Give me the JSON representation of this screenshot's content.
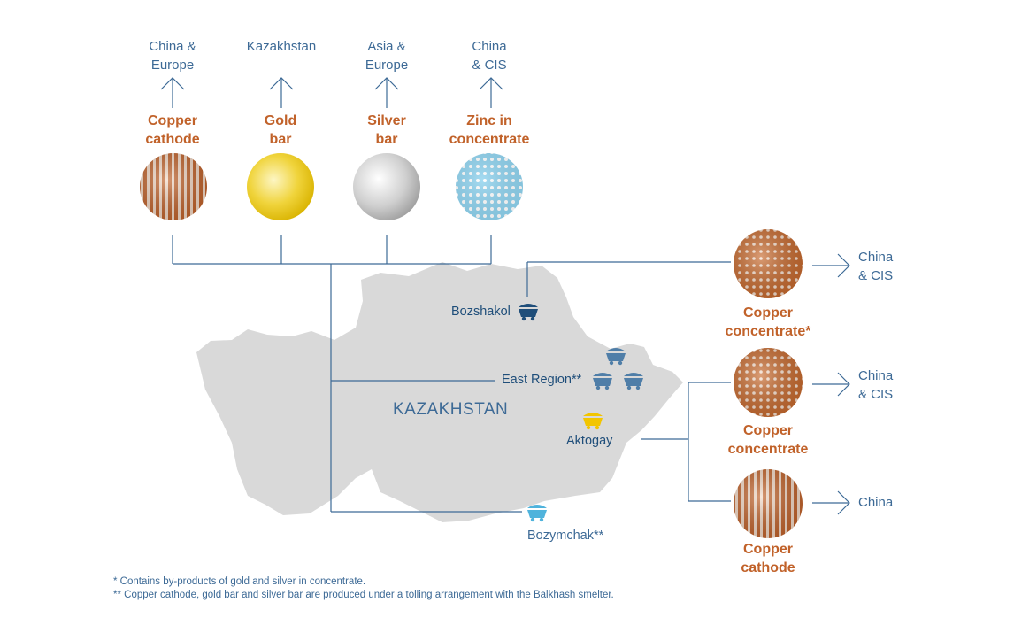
{
  "colors": {
    "line": "#3d6a96",
    "copper": "#c1622a",
    "gold": "#e8c20c",
    "silver": "#b7b7b7",
    "zinc": "#8fd3ef",
    "map": "#d9d9d9",
    "mine_dark": "#1f4e7a",
    "mine_mid": "#4f7ea8",
    "mine_gold": "#f2c500",
    "mine_light": "#4fb3dc"
  },
  "top_products": [
    {
      "destination": [
        "China &",
        "Europe"
      ],
      "name": [
        "Copper",
        "cathode"
      ],
      "texture": "stripes"
    },
    {
      "destination": [
        "Kazakhstan"
      ],
      "name": [
        "Gold",
        "bar"
      ],
      "texture": "gold"
    },
    {
      "destination": [
        "Asia &",
        "Europe"
      ],
      "name": [
        "Silver",
        "bar"
      ],
      "texture": "silver"
    },
    {
      "destination": [
        "China",
        "& CIS"
      ],
      "name": [
        "Zinc in",
        "concentrate"
      ],
      "texture": "dots-blue"
    }
  ],
  "right_products": [
    {
      "destination": [
        "China",
        "& CIS"
      ],
      "name": [
        "Copper",
        "concentrate*"
      ],
      "texture": "dots-copper"
    },
    {
      "destination": [
        "China",
        "& CIS"
      ],
      "name": [
        "Copper",
        "concentrate"
      ],
      "texture": "dots-copper"
    },
    {
      "destination": [
        "China"
      ],
      "name": [
        "Copper",
        "cathode"
      ],
      "texture": "stripes"
    }
  ],
  "map": {
    "country": "KAZAKHSTAN"
  },
  "mines": {
    "bozshakol": "Bozshakol",
    "east_region": "East Region**",
    "aktogay": "Aktogay",
    "bozymchak": "Bozymchak**"
  },
  "footnotes": [
    "*   Contains by-products of gold and silver in concentrate.",
    "** Copper cathode, gold bar and silver bar are produced under a tolling arrangement with the Balkhash smelter."
  ]
}
